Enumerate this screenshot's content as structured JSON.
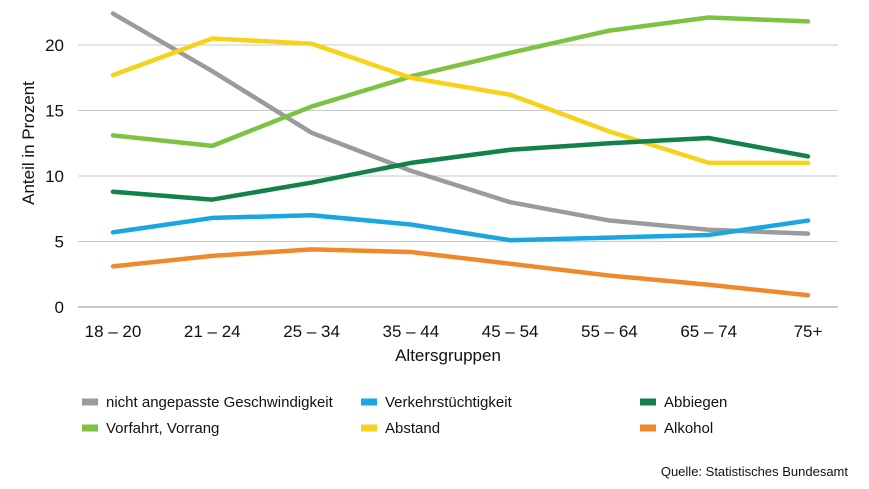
{
  "chart_data": {
    "type": "line",
    "categories": [
      "18 – 20",
      "21 – 24",
      "25 – 34",
      "35 – 44",
      "45 – 54",
      "55 – 64",
      "65 – 74",
      "75+"
    ],
    "xlabel": "Altersgruppen",
    "ylabel": "Anteil in Prozent",
    "ylim": [
      0,
      22.5
    ],
    "yticks": [
      0,
      5,
      10,
      15,
      20
    ],
    "grid": true,
    "legend_position": "bottom",
    "series": [
      {
        "name": "nicht angepasste Geschwindigkeit",
        "color": "#9b9b9b",
        "values": [
          22.4,
          18.0,
          13.3,
          10.4,
          8.0,
          6.6,
          5.9,
          5.6
        ]
      },
      {
        "name": "Vorfahrt, Vorrang",
        "color": "#7dc242",
        "values": [
          13.1,
          12.3,
          15.3,
          17.6,
          19.4,
          21.1,
          22.1,
          21.8
        ]
      },
      {
        "name": "Verkehrstüchtigkeit",
        "color": "#1aa7e0",
        "values": [
          5.7,
          6.8,
          7.0,
          6.3,
          5.1,
          5.3,
          5.5,
          6.6
        ]
      },
      {
        "name": "Abstand",
        "color": "#f7d21a",
        "values": [
          17.7,
          20.5,
          20.1,
          17.5,
          16.2,
          13.4,
          11.0,
          11.0
        ]
      },
      {
        "name": "Abbiegen",
        "color": "#12824a",
        "values": [
          8.8,
          8.2,
          9.5,
          11.0,
          12.0,
          12.5,
          12.9,
          11.5
        ]
      },
      {
        "name": "Alkohol",
        "color": "#ee8a2c",
        "values": [
          3.1,
          3.9,
          4.4,
          4.2,
          3.3,
          2.4,
          1.7,
          0.9
        ]
      }
    ]
  },
  "source": "Quelle: Statistisches Bundesamt"
}
